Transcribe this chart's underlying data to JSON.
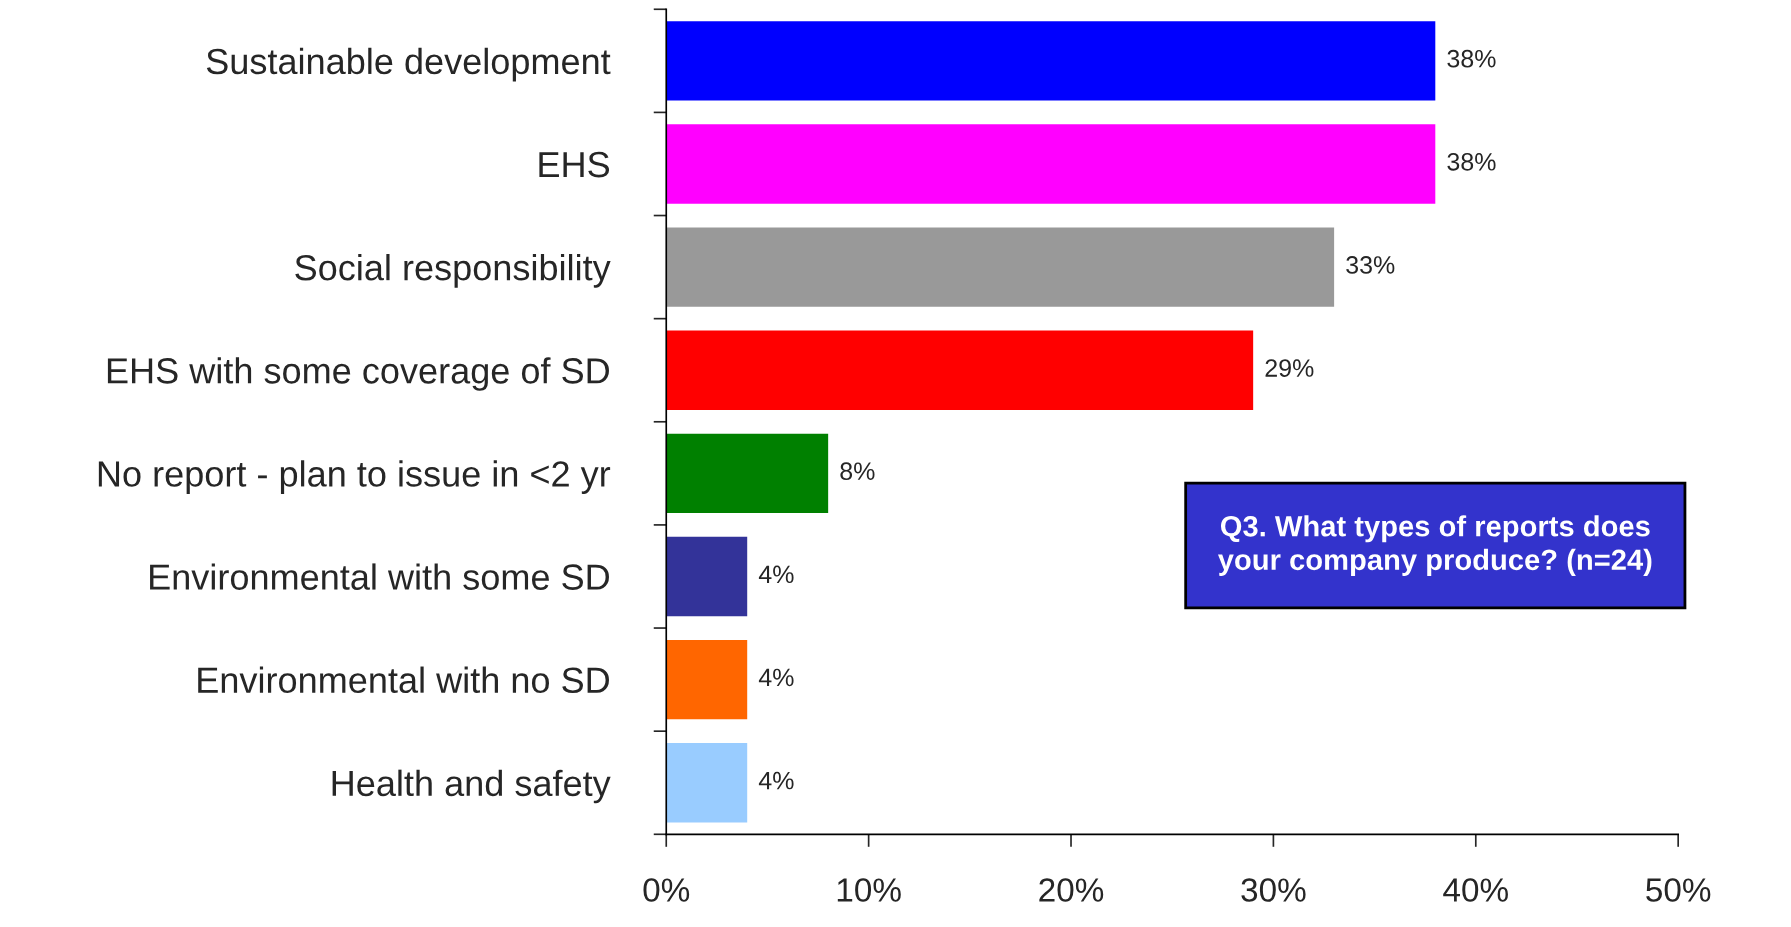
{
  "chart_data": {
    "type": "bar",
    "orientation": "horizontal",
    "categories": [
      "Sustainable development",
      "EHS",
      "Social responsibility",
      "EHS with some coverage of SD",
      "No report - plan to issue in <2 yr",
      "Environmental with some SD",
      "Environmental with no SD",
      "Health and safety"
    ],
    "values": [
      38,
      38,
      33,
      29,
      8,
      4,
      4,
      4
    ],
    "colors": [
      "#0000ff",
      "#ff00ff",
      "#999999",
      "#ff0000",
      "#008000",
      "#333399",
      "#ff6600",
      "#99ccff"
    ],
    "value_labels": [
      "38%",
      "38%",
      "33%",
      "29%",
      "8%",
      "4%",
      "4%",
      "4%"
    ],
    "xlim": [
      0,
      50
    ],
    "xticks": [
      {
        "value": 0,
        "label": "0%"
      },
      {
        "value": 10,
        "label": "10%"
      },
      {
        "value": 20,
        "label": "20%"
      },
      {
        "value": 30,
        "label": "30%"
      },
      {
        "value": 40,
        "label": "40%"
      },
      {
        "value": 50,
        "label": "50%"
      }
    ],
    "grid": false,
    "legend": false,
    "annotations": [
      "Q3. What types of reports does\nyour company produce? (n=24)"
    ]
  }
}
